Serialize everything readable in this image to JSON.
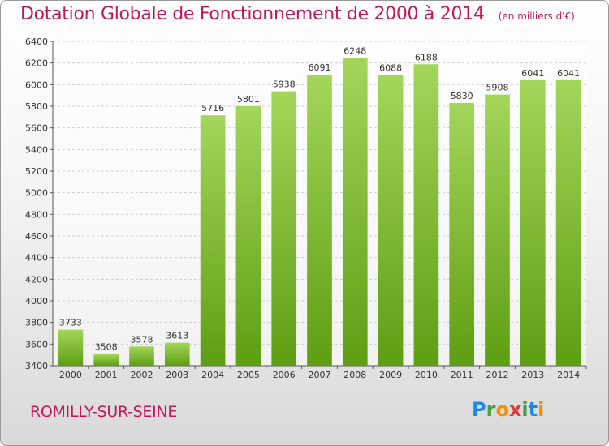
{
  "title": "Dotation Globale de Fonctionnement de 2000 à 2014",
  "subtitle": "(en milliers d'€)",
  "commune": "ROMILLY-SUR-SEINE",
  "brand": {
    "letters": [
      "P",
      "r",
      "o",
      "x",
      "i",
      "t",
      "i"
    ],
    "colors": [
      "#1e88e5",
      "#43a047",
      "#fb8c00",
      "#e53935",
      "#43a047",
      "#1e88e5",
      "#fb8c00"
    ]
  },
  "colors": {
    "title": "#c2185b",
    "bar_light": "#a3d65a",
    "bar_dark": "#5e9e12",
    "grid": "#cfcfcf",
    "axis": "#555555"
  },
  "chart_data": {
    "type": "bar",
    "categories": [
      "2000",
      "2001",
      "2002",
      "2003",
      "2004",
      "2005",
      "2006",
      "2007",
      "2008",
      "2009",
      "2010",
      "2011",
      "2012",
      "2013",
      "2014"
    ],
    "values": [
      3733,
      3508,
      3578,
      3613,
      5716,
      5801,
      5938,
      6091,
      6248,
      6088,
      6188,
      5830,
      5908,
      6041,
      6041
    ],
    "ylim": [
      3400,
      6400
    ],
    "yticks": [
      3400,
      3600,
      3800,
      4000,
      4200,
      4400,
      4600,
      4800,
      5000,
      5200,
      5400,
      5600,
      5800,
      6000,
      6200,
      6400
    ],
    "grid": true,
    "data_labels": true
  }
}
